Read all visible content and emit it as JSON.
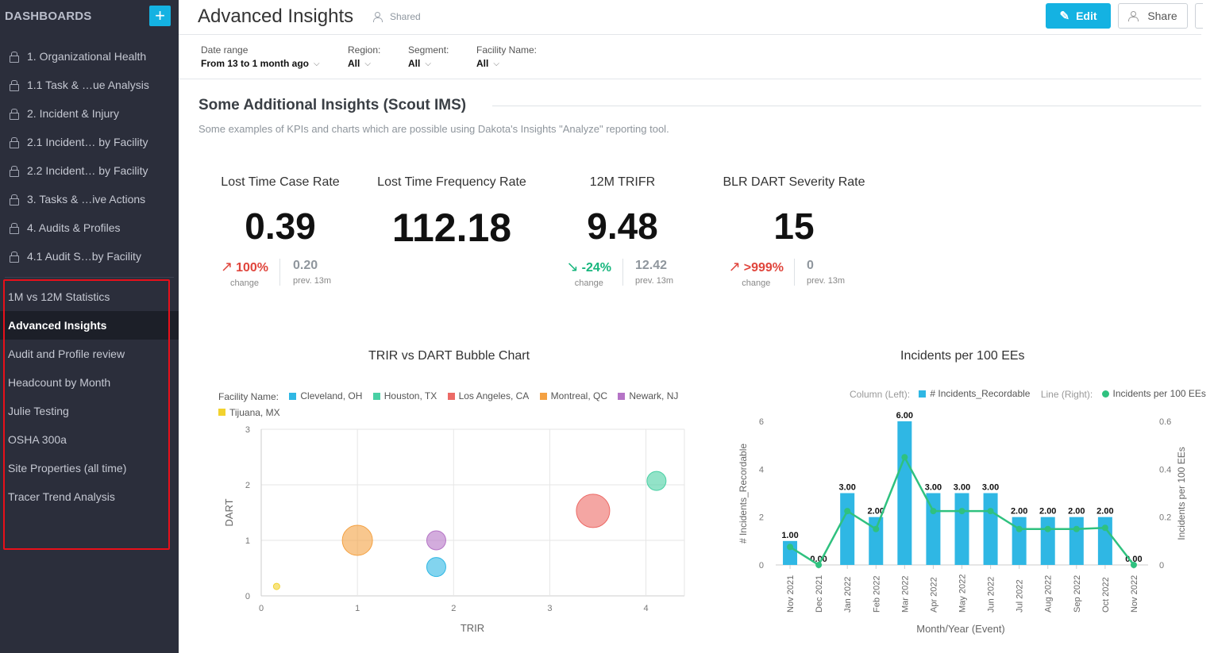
{
  "sidebar": {
    "title": "DASHBOARDS",
    "add_label": "+",
    "locked_items": [
      {
        "label": "1. Organizational Health"
      },
      {
        "label": "1.1 Task & …ue Analysis"
      },
      {
        "label": "2. Incident & Injury"
      },
      {
        "label": "2.1 Incident… by Facility"
      },
      {
        "label": "2.2 Incident… by Facility"
      },
      {
        "label": "3. Tasks & …ive Actions"
      },
      {
        "label": "4. Audits & Profiles"
      },
      {
        "label": "4.1 Audit S…by Facility"
      }
    ],
    "items": [
      {
        "label": "1M vs 12M Statistics"
      },
      {
        "label": "Advanced Insights"
      },
      {
        "label": "Audit and Profile review"
      },
      {
        "label": "Headcount by Month"
      },
      {
        "label": "Julie Testing"
      },
      {
        "label": "OSHA 300a"
      },
      {
        "label": "Site Properties (all time)"
      },
      {
        "label": "Tracer Trend Analysis"
      }
    ],
    "active": "Advanced Insights"
  },
  "header": {
    "title": "Advanced Insights",
    "shared_label": "Shared",
    "edit_label": "Edit",
    "share_label": "Share"
  },
  "filters": [
    {
      "label": "Date range",
      "value": "From 13 to 1 month ago"
    },
    {
      "label": "Region:",
      "value": "All"
    },
    {
      "label": "Segment:",
      "value": "All"
    },
    {
      "label": "Facility Name:",
      "value": "All"
    }
  ],
  "section": {
    "title": "Some Additional Insights (Scout IMS)",
    "description": "Some examples of KPIs and charts which are possible using Dakota's Insights \"Analyze\" reporting tool."
  },
  "kpis": [
    {
      "title": "Lost Time Case Rate",
      "value": "0.39",
      "change": "100%",
      "direction": "up",
      "change_label": "change",
      "prev": "0.20",
      "prev_label": "prev. 13m"
    },
    {
      "title": "Lost Time Frequency Rate",
      "value": "112.18",
      "change": "",
      "direction": "",
      "change_label": "",
      "prev": "",
      "prev_label": ""
    },
    {
      "title": "12M TRIFR",
      "value": "9.48",
      "change": "-24%",
      "direction": "down",
      "change_label": "change",
      "prev": "12.42",
      "prev_label": "prev. 13m"
    },
    {
      "title": "BLR DART Severity Rate",
      "value": "15",
      "change": ">999%",
      "direction": "up",
      "change_label": "change",
      "prev": "0",
      "prev_label": "prev. 13m"
    }
  ],
  "colors": {
    "accent": "#14b2e2",
    "sidebar_bg": "#2b2e3b",
    "negative": "#e0453c",
    "positive": "#17b67d",
    "highlight_box": "#e8101a"
  },
  "chart_data": [
    {
      "type": "scatter",
      "title": "TRIR vs DART Bubble Chart",
      "legend_title": "Facility Name:",
      "xlabel": "TRIR",
      "ylabel": "DART",
      "xlim": [
        0,
        4.4
      ],
      "ylim": [
        0,
        3
      ],
      "xticks": [
        "0",
        "1",
        "2",
        "3",
        "4"
      ],
      "yticks": [
        "0",
        "1",
        "2",
        "3"
      ],
      "grid": true,
      "legend_position": "top-left",
      "series": [
        {
          "name": "Cleveland, OH",
          "color": "#2fb7e4",
          "x": 1.82,
          "y": 0.52,
          "size": 12
        },
        {
          "name": "Houston, TX",
          "color": "#49d0a4",
          "x": 4.11,
          "y": 2.07,
          "size": 12
        },
        {
          "name": "Los Angeles, CA",
          "color": "#ec6a66",
          "x": 3.45,
          "y": 1.53,
          "size": 21
        },
        {
          "name": "Montreal, QC",
          "color": "#f4a142",
          "x": 1.0,
          "y": 1.0,
          "size": 19
        },
        {
          "name": "Newark, NJ",
          "color": "#b574c6",
          "x": 1.82,
          "y": 1.0,
          "size": 12
        },
        {
          "name": "Tijuana, MX",
          "color": "#f2d22e",
          "x": 0.16,
          "y": 0.17,
          "size": 4
        }
      ]
    },
    {
      "type": "bar",
      "title": "Incidents per 100 EEs",
      "legend": {
        "left_prefix": "Column (Left):",
        "left_name": "# Incidents_Recordable",
        "right_prefix": "Line (Right):",
        "right_name": "Incidents per 100 EEs"
      },
      "legend_position": "top-right",
      "categories": [
        "Nov 2021",
        "Dec 2021",
        "Jan 2022",
        "Feb 2022",
        "Mar 2022",
        "Apr 2022",
        "May 2022",
        "Jun 2022",
        "Jul 2022",
        "Aug 2022",
        "Sep 2022",
        "Oct 2022",
        "Nov 2022"
      ],
      "series": [
        {
          "name": "# Incidents_Recordable",
          "type": "bar",
          "axis": "left",
          "color": "#2fb7e4",
          "values": [
            1,
            0,
            3,
            2,
            6,
            3,
            3,
            3,
            2,
            2,
            2,
            2,
            0
          ],
          "labels": [
            "1.00",
            "0.00",
            "3.00",
            "2.00",
            "6.00",
            "3.00",
            "3.00",
            "3.00",
            "2.00",
            "2.00",
            "2.00",
            "2.00",
            "0.00"
          ]
        },
        {
          "name": "Incidents per 100 EEs",
          "type": "line",
          "axis": "right",
          "color": "#2fc17f",
          "values": [
            0.075,
            0.0,
            0.225,
            0.15,
            0.45,
            0.225,
            0.225,
            0.225,
            0.15,
            0.15,
            0.15,
            0.155,
            0.0
          ]
        }
      ],
      "xlabel": "Month/Year (Event)",
      "ylabel_left": "# Incidents_Recordable",
      "ylabel_right": "Incidents per 100 EEs",
      "ylim_left": [
        0,
        6
      ],
      "ylim_right": [
        0,
        0.6
      ],
      "yticks_left": [
        "0",
        "2",
        "4",
        "6"
      ],
      "yticks_right": [
        "0",
        "0.2",
        "0.4",
        "0.6"
      ]
    }
  ]
}
